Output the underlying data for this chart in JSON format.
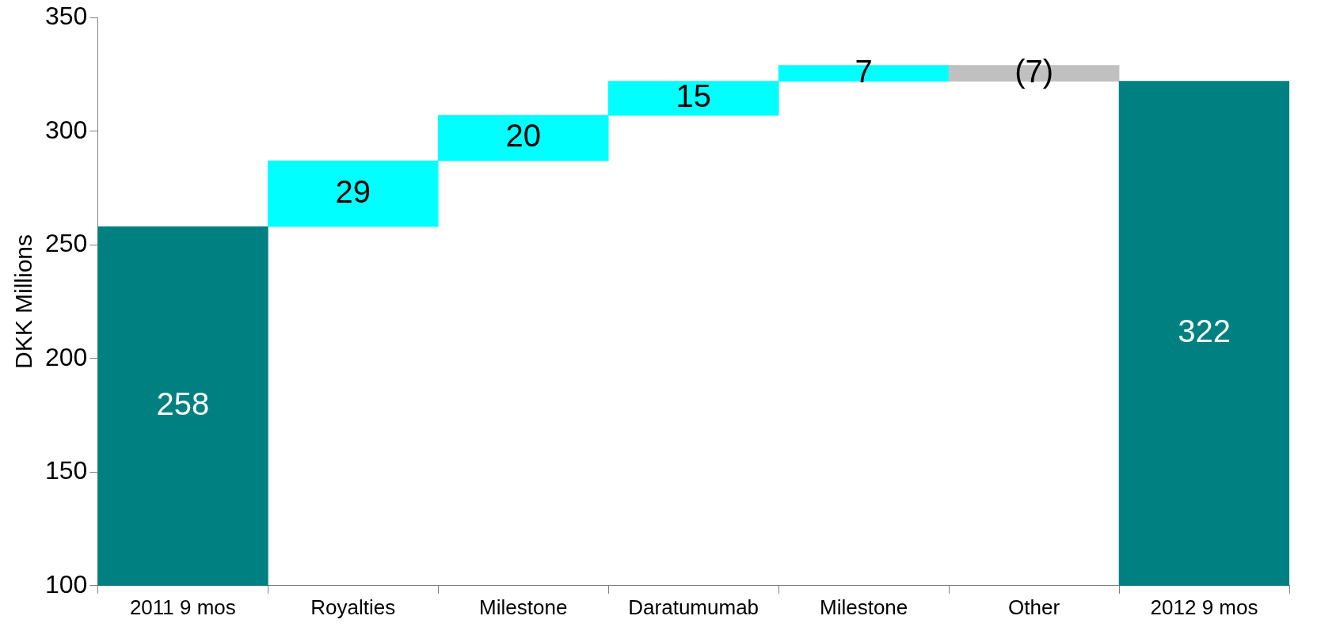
{
  "chart_data": {
    "type": "bar",
    "ylabel": "DKK Millions",
    "categories": [
      "2011 9 mos",
      "Royalties",
      "Milestone",
      "Daratumumab",
      "Milestone",
      "Other",
      "2012 9 mos"
    ],
    "values": [
      258,
      29,
      20,
      15,
      7,
      -7,
      322
    ],
    "base": [
      null,
      258,
      287,
      307,
      322,
      329,
      null
    ],
    "colors": [
      "#008080",
      "#00ffff",
      "#00ffff",
      "#00ffff",
      "#00ffff",
      "#c0c0c0",
      "#008080"
    ],
    "value_labels": [
      "258",
      "29",
      "20",
      "15",
      "7",
      "(7)",
      "322"
    ],
    "ylim": [
      100,
      350
    ],
    "yticks": [
      100,
      150,
      200,
      250,
      300,
      350
    ],
    "grid": false,
    "legend": false
  }
}
